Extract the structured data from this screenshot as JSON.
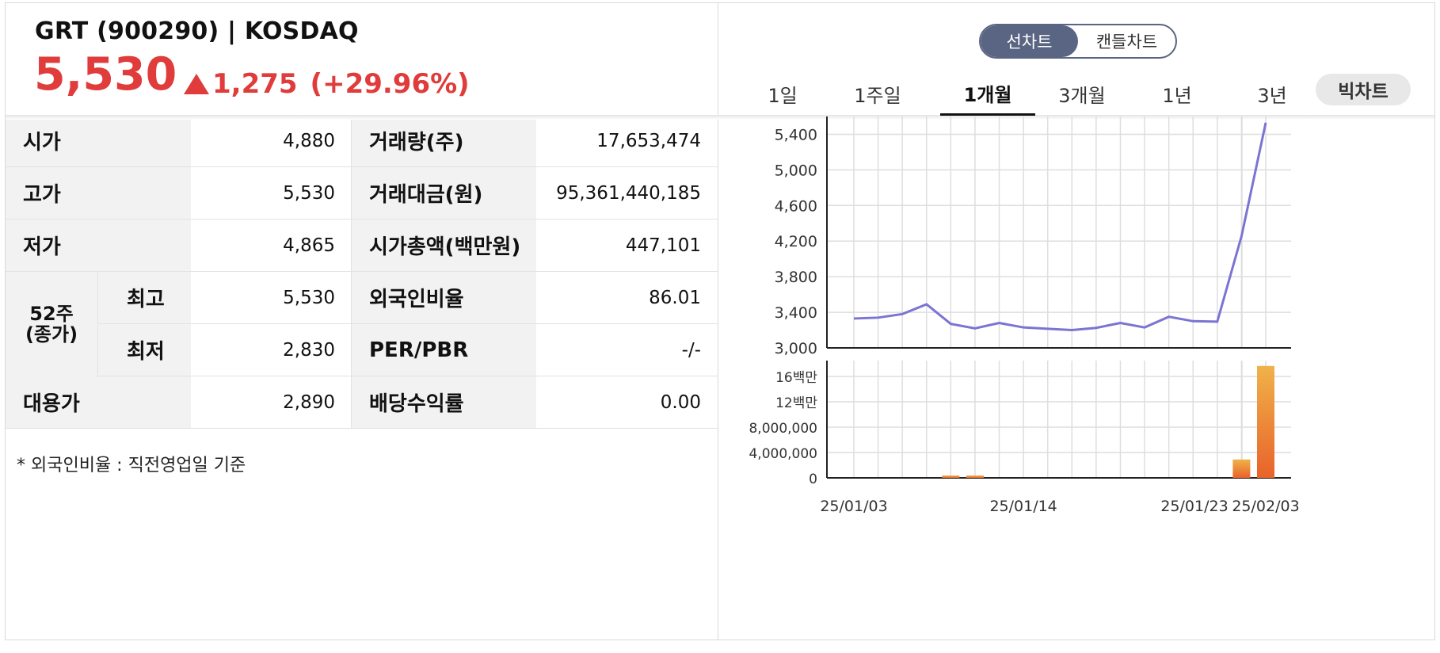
{
  "header": {
    "stock_name": "GRT",
    "stock_code": "(900290)",
    "separator": "|",
    "market": "KOSDAQ",
    "price": "5,530",
    "change": "1,275",
    "change_pct": "(+29.96%)",
    "up_color": "#e03c3c",
    "direction_icon": "triangle-up-icon"
  },
  "table": {
    "open_label": "시가",
    "open_value": "4,880",
    "high_label": "고가",
    "high_value": "5,530",
    "low_label": "저가",
    "low_value": "4,865",
    "w52_label_1": "52주",
    "w52_label_2": "(종가)",
    "w52_high_label": "최고",
    "w52_high_value": "5,530",
    "w52_low_label": "최저",
    "w52_low_value": "2,830",
    "base_label": "대용가",
    "base_value": "2,890",
    "volume_label": "거래량(주)",
    "volume_value": "17,653,474",
    "amount_label": "거래대금(원)",
    "amount_value": "95,361,440,185",
    "mktcap_label": "시가총액(백만원)",
    "mktcap_value": "447,101",
    "foreign_label": "외국인비율",
    "foreign_value": "86.01",
    "perpbr_label": "PER/PBR",
    "perpbr_value": "-/-",
    "dividend_label": "배당수익률",
    "dividend_value": "0.00"
  },
  "note": "* 외국인비율 : 직전영업일 기준",
  "chart_controls": {
    "line_chart": "선차트",
    "candle_chart": "캔들차트",
    "selected_type": "선차트",
    "periods": [
      "1일",
      "1주일",
      "1개월",
      "3개월",
      "1년",
      "3년"
    ],
    "selected_period": "1개월",
    "big_chart": "빅차트"
  },
  "chart_data": [
    {
      "type": "line",
      "color": "#7b74d3",
      "ylim": [
        3000,
        5600
      ],
      "yticks": [
        "5,400",
        "5,000",
        "4,600",
        "4,200",
        "3,800",
        "3,400",
        "3,000"
      ],
      "ytick_values": [
        5400,
        5000,
        4600,
        4200,
        3800,
        3400,
        3000
      ],
      "values": [
        3330,
        3340,
        3380,
        3490,
        3270,
        3220,
        3280,
        3230,
        3215,
        3200,
        3225,
        3280,
        3230,
        3350,
        3300,
        3295,
        4255,
        5530
      ],
      "grid": true
    },
    {
      "type": "bar",
      "ylim": [
        0,
        18500000
      ],
      "yticks": [
        "16백만",
        "12백만",
        "8,000,000",
        "4,000,000",
        "0"
      ],
      "ytick_values": [
        16000000,
        12000000,
        8000000,
        4000000,
        0
      ],
      "values": [
        0,
        0,
        0,
        0,
        150000,
        150000,
        0,
        0,
        0,
        0,
        0,
        0,
        0,
        0,
        0,
        0,
        2900000,
        17653474
      ],
      "xtick_labels": [
        "25/01/03",
        "25/01/14",
        "25/01/23",
        "25/02/03"
      ],
      "xtick_indices": [
        0,
        7,
        14,
        17
      ],
      "bar_colors": [
        "#f0b24a",
        "#e8632a"
      ],
      "grid": true
    }
  ]
}
